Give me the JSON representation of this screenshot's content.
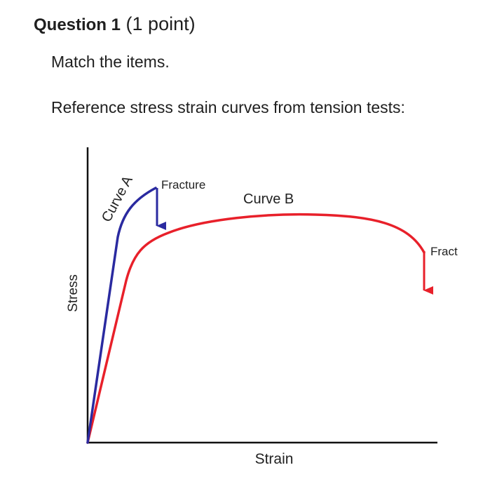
{
  "question": {
    "title": "Question 1",
    "points": "(1 point)"
  },
  "instruction": "Match the items.",
  "reference_text": "Reference stress strain curves from tension tests:",
  "figure": {
    "xlabel": "Strain",
    "ylabel": "Stress",
    "curve_a_label": "Curve A",
    "curve_b_label": "Curve B",
    "fracture_a_label": "Fracture",
    "fracture_b_label": "Fract",
    "colors": {
      "curve_a": "#2a2aa0",
      "curve_b": "#e8202a",
      "axes": "#111111"
    }
  }
}
